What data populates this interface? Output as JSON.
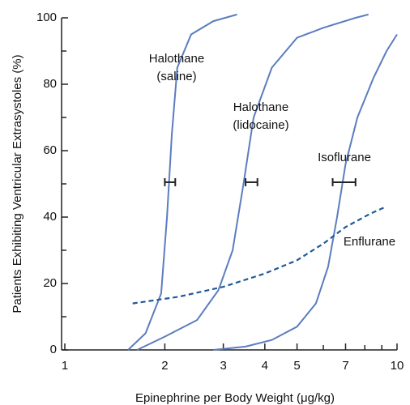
{
  "chart_data": {
    "type": "line",
    "xlabel": "Epinephrine per Body Weight (μg/kg)",
    "ylabel": "Patients Exhibiting Ventricular Extrasystoles (%)",
    "xscale": "log",
    "xlim": [
      1,
      10
    ],
    "ylim": [
      0,
      100
    ],
    "xticks": [
      1,
      2,
      3,
      4,
      5,
      7,
      10
    ],
    "xminorticks": [
      6,
      8,
      9
    ],
    "yticks": [
      0,
      20,
      40,
      60,
      80,
      100
    ],
    "yminorticks": [
      10,
      30,
      50,
      70,
      90
    ],
    "series": [
      {
        "name": [
          "Halothane",
          "(saline)"
        ],
        "color": "#5b7dbf",
        "dashed": false,
        "x": [
          1.55,
          1.75,
          1.95,
          2.03,
          2.1,
          2.18,
          2.4,
          2.8,
          3.3
        ],
        "values": [
          0,
          5,
          17,
          40,
          65,
          85,
          95,
          99,
          101
        ]
      },
      {
        "name": [
          "Halothane",
          "(lidocaine)"
        ],
        "color": "#5b7dbf",
        "dashed": false,
        "x": [
          1.65,
          2.0,
          2.5,
          2.9,
          3.2,
          3.45,
          3.7,
          4.2,
          5,
          6,
          7.5,
          8.2
        ],
        "values": [
          0,
          4,
          9,
          18,
          30,
          50,
          70,
          85,
          94,
          97,
          100,
          101
        ]
      },
      {
        "name": [
          "Isoflurane"
        ],
        "color": "#5b7dbf",
        "dashed": false,
        "x": [
          2.8,
          3.5,
          4.2,
          5,
          5.7,
          6.2,
          6.6,
          7,
          7.6,
          8.5,
          9.3,
          10
        ],
        "values": [
          0,
          1,
          3,
          7,
          14,
          25,
          40,
          56,
          70,
          82,
          90,
          95
        ]
      },
      {
        "name": [
          "Enflurane"
        ],
        "color": "#1f5a9a",
        "dashed": true,
        "x": [
          1.6,
          2.2,
          3,
          4,
          5,
          6,
          7,
          8.3,
          9.2
        ],
        "values": [
          14,
          16,
          19,
          23,
          27,
          32,
          37,
          41,
          43
        ]
      }
    ],
    "errorbars": [
      {
        "y": 50.5,
        "xlow": 2.0,
        "xhigh": 2.15
      },
      {
        "y": 50.5,
        "xlow": 3.5,
        "xhigh": 3.8
      },
      {
        "y": 50.5,
        "xlow": 6.4,
        "xhigh": 7.5
      }
    ],
    "errorbar_color": "#222"
  }
}
